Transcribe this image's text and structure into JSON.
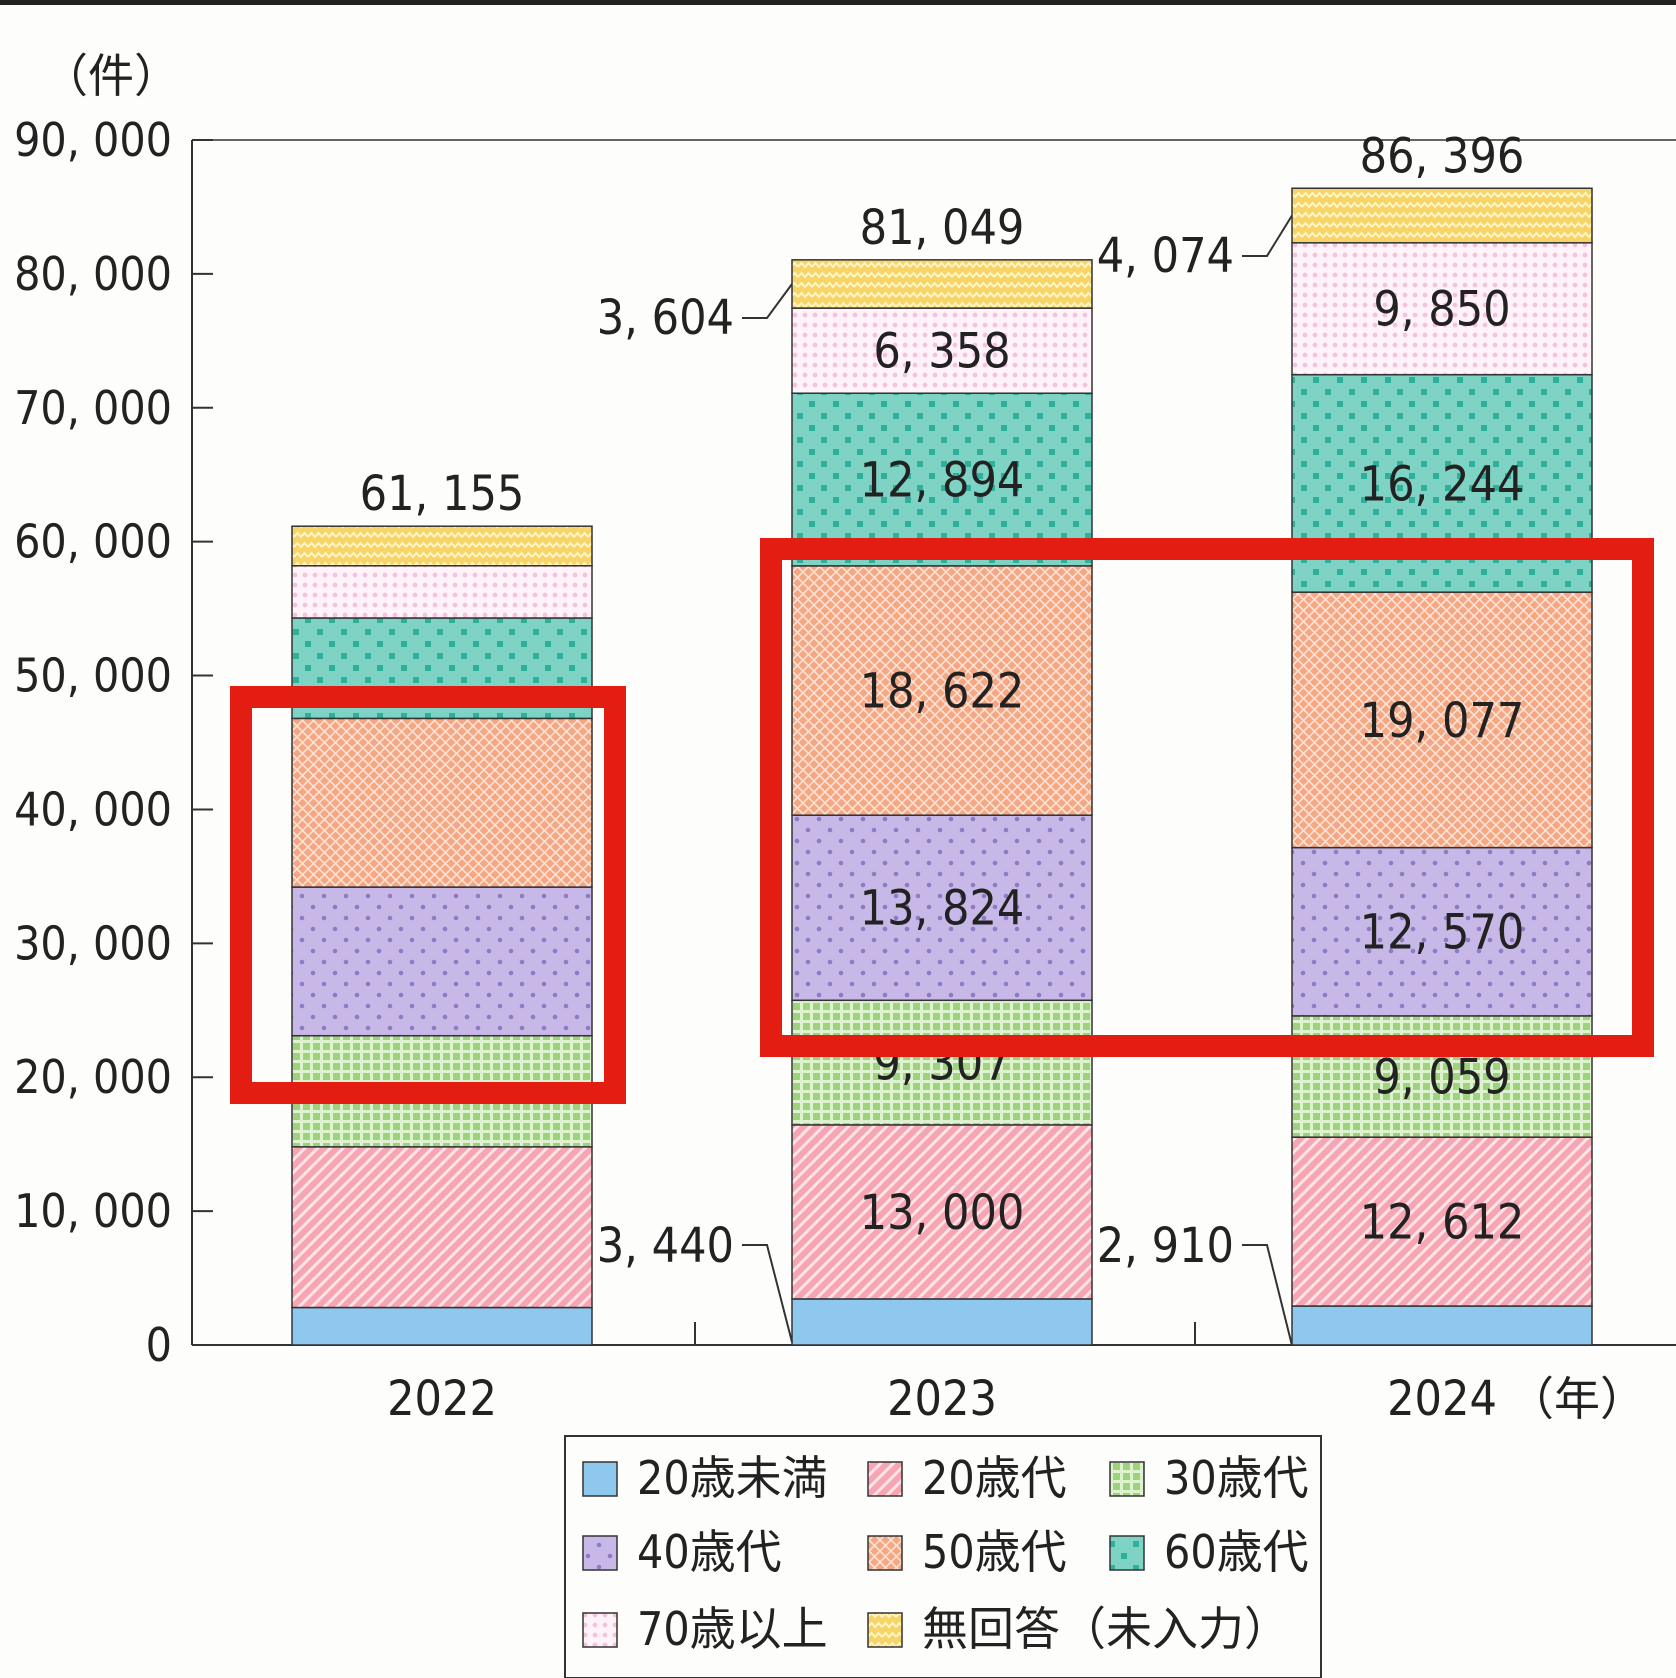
{
  "chart_data": {
    "type": "bar",
    "stacked": true,
    "y_unit": "（件）",
    "x_unit": "（年）",
    "ylim": [
      0,
      90000
    ],
    "y_ticks": [
      0,
      10000,
      20000,
      30000,
      40000,
      50000,
      60000,
      70000,
      80000,
      90000
    ],
    "categories": [
      "2022",
      "2023",
      "2024"
    ],
    "series": [
      {
        "name": "20歳未満",
        "values": [
          2800,
          3440,
          2910
        ],
        "labels": [
          null,
          "3, 440",
          "2, 910"
        ],
        "color": "#8ec8ef",
        "pattern": "plain"
      },
      {
        "name": "20歳代",
        "values": [
          12000,
          13000,
          12612
        ],
        "labels": [
          null,
          "13, 000",
          "12, 612"
        ],
        "color": "#f6a6b2",
        "pattern": "diagonal"
      },
      {
        "name": "30歳代",
        "values": [
          8300,
          9307,
          9059
        ],
        "labels": [
          null,
          "9, 307",
          "9, 059"
        ],
        "color": "#a8d888",
        "pattern": "grid"
      },
      {
        "name": "40歳代",
        "values": [
          11100,
          13824,
          12570
        ],
        "labels": [
          null,
          "13, 824",
          "12, 570"
        ],
        "color": "#c7b8e8",
        "pattern": "dots"
      },
      {
        "name": "50歳代",
        "values": [
          12600,
          18622,
          19077
        ],
        "labels": [
          null,
          "18, 622",
          "19, 077"
        ],
        "color": "#f4a783",
        "pattern": "crosshatch"
      },
      {
        "name": "60歳代",
        "values": [
          7500,
          12894,
          16244
        ],
        "labels": [
          null,
          "12, 894",
          "16, 244"
        ],
        "color": "#7ed3c4",
        "pattern": "squares"
      },
      {
        "name": "70歳以上",
        "values": [
          3900,
          6358,
          9850
        ],
        "labels": [
          null,
          "6, 358",
          "9, 850"
        ],
        "color": "#fbe1ef",
        "pattern": "dots-light"
      },
      {
        "name": "無回答（未入力）",
        "values": [
          2955,
          3604,
          4074
        ],
        "labels": [
          null,
          "3, 604",
          "4, 074"
        ],
        "color": "#f6d468",
        "pattern": "zigzag"
      }
    ],
    "totals": [
      61155,
      81049,
      86396
    ],
    "total_labels": [
      "61, 155",
      "81, 049",
      "86, 396"
    ],
    "tick_labels": [
      "0",
      "10, 000",
      "20, 000",
      "30, 000",
      "40, 000",
      "50, 000",
      "60, 000",
      "70, 000",
      "80, 000",
      "90, 000"
    ],
    "legend_placement": "bottom-center",
    "grid": false,
    "highlight_color": "#e41d12"
  }
}
